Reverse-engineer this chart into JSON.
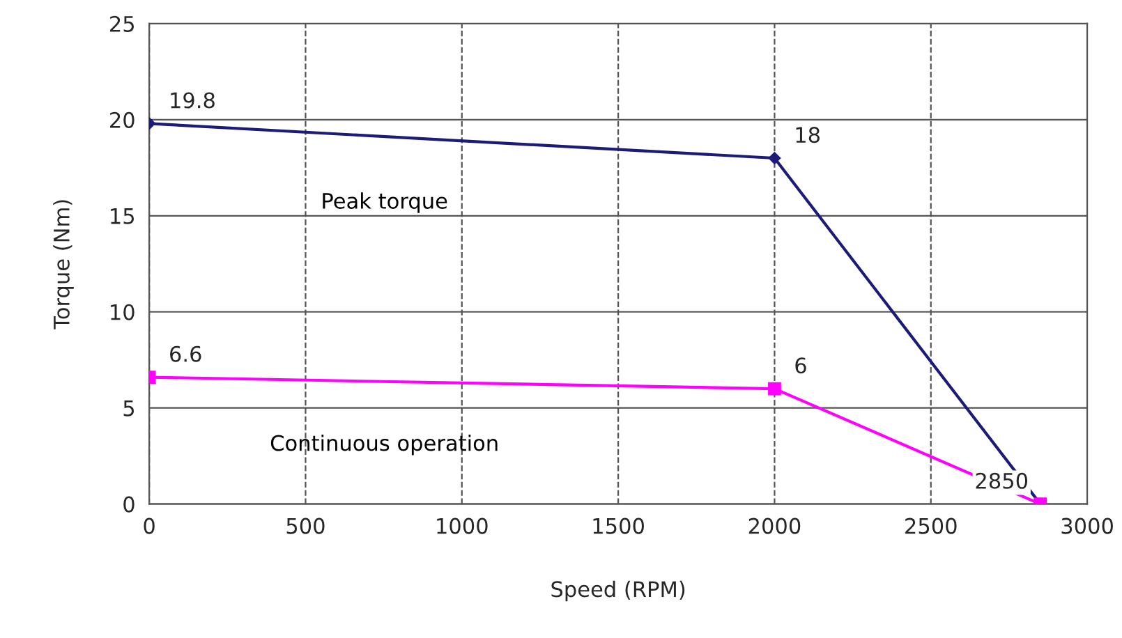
{
  "chart_data": {
    "type": "line",
    "xlabel": "Speed (RPM)",
    "ylabel": "Torque (Nm)",
    "xlim": [
      0,
      3000
    ],
    "xticks": [
      0,
      500,
      1000,
      1500,
      2000,
      2500,
      3000
    ],
    "ylim": [
      0,
      25
    ],
    "yticks": [
      0,
      5,
      10,
      15,
      20,
      25
    ],
    "grid": true,
    "series": [
      {
        "name": "Peak torque",
        "color": "#1c1c78",
        "marker": "diamond",
        "x": [
          0,
          2000,
          2850
        ],
        "values": [
          19.8,
          18,
          0
        ]
      },
      {
        "name": "Continuous operation",
        "color": "#ff00ff",
        "marker": "square",
        "x": [
          0,
          2000,
          2850
        ],
        "values": [
          6.6,
          6,
          0
        ]
      }
    ],
    "annotations": [
      {
        "text": "19.8",
        "x": 0,
        "y": 19.8
      },
      {
        "text": "18",
        "x": 2000,
        "y": 18
      },
      {
        "text": "6.6",
        "x": 0,
        "y": 6.6
      },
      {
        "text": "6",
        "x": 2000,
        "y": 6
      },
      {
        "text": "2850",
        "x": 2850,
        "y": 0
      }
    ]
  }
}
